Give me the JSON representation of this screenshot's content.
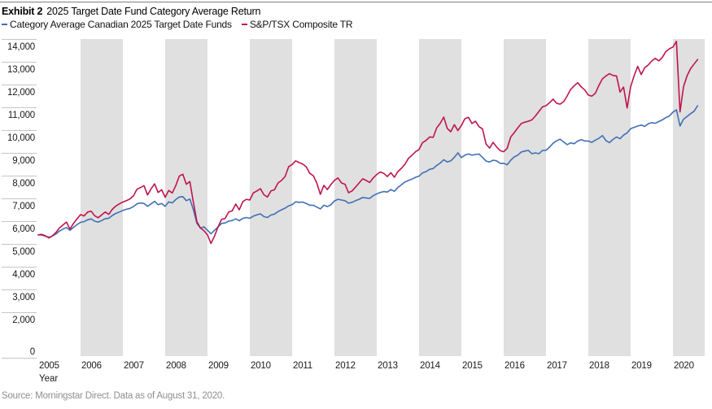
{
  "header": {
    "exhibit_label": "Exhibit 2",
    "title": "2025 Target Date Fund Category Average Return"
  },
  "legend": {
    "items": [
      {
        "label": "Category Average Canadian 2025 Target Date Funds",
        "color": "#4070b4"
      },
      {
        "label": "S&P/TSX Composite TR",
        "color": "#c0134e"
      }
    ]
  },
  "footer": {
    "source": "Source: Morningstar Direct. Data as of August 31, 2020."
  },
  "chart_data": {
    "type": "line",
    "title": "2025 Target Date Fund Category Average Return",
    "xlabel": "Year",
    "ylabel": "",
    "ylim": [
      0,
      14000
    ],
    "y_ticks": [
      0,
      2000,
      3000,
      4000,
      5000,
      6000,
      7000,
      8000,
      9000,
      10000,
      11000,
      12000,
      13000,
      14000
    ],
    "x_tick_years": [
      2005,
      2006,
      2007,
      2008,
      2009,
      2010,
      2011,
      2012,
      2013,
      2014,
      2015,
      2016,
      2017,
      2018,
      2019,
      2020
    ],
    "x_range": {
      "start": "2005-01",
      "end": "2020-08"
    },
    "frequency": "monthly",
    "grid": "none",
    "background_bands": {
      "shaded_years": "even",
      "color": "#e0e0e0"
    },
    "legend_position": "top-left",
    "series": [
      {
        "name": "Category Average Canadian 2025 Target Date Funds",
        "color": "#4070b4",
        "values": [
          5400,
          5390,
          5340,
          5300,
          5340,
          5440,
          5560,
          5650,
          5720,
          5600,
          5730,
          5850,
          5950,
          5980,
          6060,
          6100,
          6000,
          5960,
          6030,
          6110,
          6130,
          6250,
          6340,
          6400,
          6470,
          6520,
          6560,
          6640,
          6760,
          6800,
          6780,
          6650,
          6760,
          6870,
          6720,
          6780,
          6650,
          6850,
          6800,
          6950,
          7060,
          7080,
          6900,
          6970,
          6500,
          5900,
          5700,
          5750,
          5600,
          5450,
          5600,
          5750,
          5900,
          5920,
          6000,
          6030,
          6100,
          6020,
          6120,
          6160,
          6130,
          6220,
          6280,
          6320,
          6200,
          6160,
          6270,
          6310,
          6420,
          6500,
          6570,
          6670,
          6720,
          6850,
          6830,
          6840,
          6780,
          6700,
          6700,
          6620,
          6540,
          6700,
          6640,
          6720,
          6890,
          6960,
          6930,
          6900,
          6790,
          6830,
          6900,
          6960,
          7040,
          7020,
          7000,
          7120,
          7200,
          7260,
          7300,
          7280,
          7390,
          7310,
          7480,
          7600,
          7720,
          7790,
          7850,
          7930,
          7980,
          8120,
          8180,
          8280,
          8310,
          8450,
          8550,
          8700,
          8600,
          8650,
          8800,
          9000,
          8790,
          8900,
          8950,
          8900,
          8930,
          8950,
          8800,
          8640,
          8600,
          8680,
          8650,
          8540,
          8540,
          8480,
          8680,
          8820,
          8900,
          9040,
          9080,
          9110,
          8960,
          9000,
          8960,
          9110,
          9110,
          9250,
          9420,
          9530,
          9600,
          9480,
          9360,
          9440,
          9400,
          9520,
          9580,
          9520,
          9520,
          9460,
          9560,
          9640,
          9760,
          9540,
          9450,
          9590,
          9700,
          9620,
          9780,
          9880,
          10060,
          10120,
          10180,
          10220,
          10160,
          10280,
          10330,
          10300,
          10380,
          10450,
          10550,
          10620,
          10790,
          10890,
          10180,
          10480,
          10600,
          10720,
          10830,
          11070
        ]
      },
      {
        "name": "S&P/TSX Composite TR",
        "color": "#c0134e",
        "values": [
          5400,
          5420,
          5360,
          5260,
          5350,
          5500,
          5700,
          5830,
          5960,
          5650,
          5900,
          6100,
          6290,
          6230,
          6400,
          6440,
          6240,
          6150,
          6280,
          6400,
          6300,
          6520,
          6660,
          6760,
          6840,
          6900,
          6980,
          7110,
          7400,
          7480,
          7560,
          7150,
          7420,
          7640,
          7260,
          7380,
          7050,
          7350,
          7240,
          7560,
          7980,
          8060,
          7620,
          7740,
          6820,
          5980,
          5700,
          5580,
          5400,
          5020,
          5350,
          5750,
          6080,
          6120,
          6400,
          6450,
          6750,
          6500,
          6850,
          6960,
          6930,
          7240,
          7330,
          7430,
          7160,
          7060,
          7330,
          7380,
          7680,
          7790,
          7960,
          8390,
          8490,
          8650,
          8570,
          8510,
          8390,
          8100,
          8000,
          7680,
          7180,
          7570,
          7390,
          7610,
          7790,
          7900,
          7680,
          7620,
          7250,
          7330,
          7500,
          7680,
          7860,
          7790,
          7700,
          7900,
          8050,
          8160,
          8100,
          7960,
          8130,
          7930,
          8180,
          8320,
          8500,
          8760,
          8900,
          9050,
          9150,
          9450,
          9550,
          9700,
          9680,
          10100,
          10300,
          10570,
          10070,
          9930,
          10240,
          9980,
          10200,
          10500,
          10560,
          10290,
          10390,
          10150,
          10050,
          9390,
          9210,
          9460,
          9260,
          9100,
          9050,
          9200,
          9700,
          9890,
          10100,
          10290,
          10350,
          10390,
          10450,
          10620,
          10820,
          11020,
          11070,
          11200,
          11360,
          11180,
          11140,
          11250,
          11500,
          11790,
          11950,
          12080,
          11900,
          11760,
          11540,
          11490,
          11620,
          11960,
          12250,
          12380,
          12480,
          12400,
          12380,
          11670,
          11890,
          10970,
          11900,
          12390,
          12800,
          12440,
          12740,
          12860,
          13040,
          13150,
          13040,
          13200,
          13450,
          13570,
          13650,
          13900,
          10800,
          11900,
          12380,
          12700,
          12900,
          13100
        ]
      }
    ]
  }
}
